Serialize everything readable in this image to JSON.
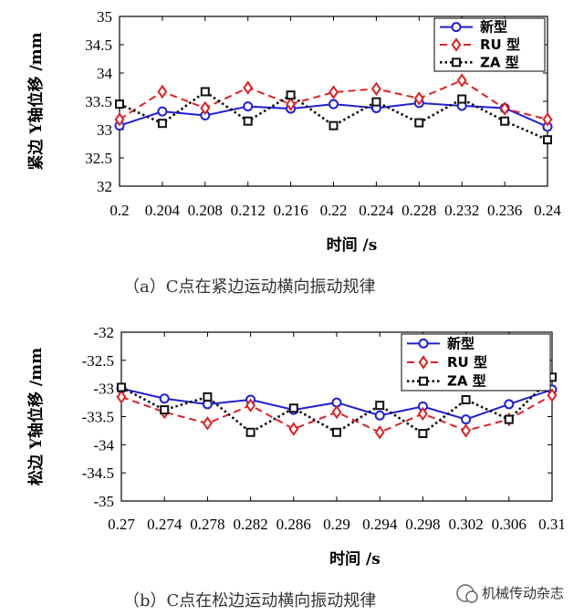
{
  "chart_data": [
    {
      "type": "line",
      "caption": "（a）C点在紧边运动横向振动规律",
      "xlabel": "时间 /s",
      "ylabel": "紧边 Y轴位移 /mm",
      "x": [
        0.2,
        0.204,
        0.208,
        0.212,
        0.216,
        0.22,
        0.224,
        0.228,
        0.232,
        0.236,
        0.24
      ],
      "x_tick_labels": [
        "0.2",
        "0.204",
        "0.208",
        "0.212",
        "0.216",
        "0.22",
        "0.224",
        "0.228",
        "0.232",
        "0.236",
        "0.24"
      ],
      "ylim": [
        32,
        35
      ],
      "y_ticks": [
        32,
        32.5,
        33,
        33.5,
        34,
        34.5,
        35
      ],
      "y_tick_labels": [
        "32",
        "32.5",
        "33",
        "33.5",
        "34",
        "34.5",
        "35"
      ],
      "grid": false,
      "legend_position": "top-right",
      "series": [
        {
          "name": "新型",
          "color": "#1f1fd6",
          "style": "solid",
          "marker": "circle",
          "values": [
            33.07,
            33.32,
            33.25,
            33.41,
            33.37,
            33.45,
            33.38,
            33.47,
            33.42,
            33.38,
            33.05
          ]
        },
        {
          "name": "RU 型",
          "color": "#e02020",
          "style": "dashed",
          "marker": "diamond",
          "values": [
            33.18,
            33.67,
            33.38,
            33.74,
            33.45,
            33.66,
            33.72,
            33.55,
            33.87,
            33.37,
            33.18
          ]
        },
        {
          "name": "ZA 型",
          "color": "#111111",
          "style": "dotted",
          "marker": "square",
          "values": [
            33.45,
            33.11,
            33.67,
            33.15,
            33.61,
            33.07,
            33.49,
            33.12,
            33.54,
            33.15,
            32.82
          ]
        }
      ]
    },
    {
      "type": "line",
      "caption": "（b）C点在松边运动横向振动规律",
      "xlabel": "时间 /s",
      "ylabel": "松边 Y轴位移 /mm",
      "x": [
        0.27,
        0.274,
        0.278,
        0.282,
        0.286,
        0.29,
        0.294,
        0.298,
        0.302,
        0.306,
        0.31
      ],
      "x_tick_labels": [
        "0.27",
        "0.274",
        "0.278",
        "0.282",
        "0.286",
        "0.29",
        "0.294",
        "0.298",
        "0.302",
        "0.306",
        "0.31"
      ],
      "ylim": [
        -35,
        -32
      ],
      "y_ticks": [
        -35,
        -34.5,
        -34,
        -33.5,
        -33,
        -32.5,
        -32
      ],
      "y_tick_labels": [
        "-35",
        "-34.5",
        "-34",
        "-33.5",
        "-33",
        "-32.5",
        "-32"
      ],
      "grid": false,
      "legend_position": "top-right",
      "series": [
        {
          "name": "新型",
          "color": "#1f1fd6",
          "style": "solid",
          "marker": "circle",
          "values": [
            -33.0,
            -33.18,
            -33.28,
            -33.2,
            -33.38,
            -33.25,
            -33.48,
            -33.32,
            -33.55,
            -33.28,
            -33.02
          ]
        },
        {
          "name": "RU 型",
          "color": "#e02020",
          "style": "dashed",
          "marker": "diamond",
          "values": [
            -33.15,
            -33.42,
            -33.62,
            -33.3,
            -33.72,
            -33.42,
            -33.78,
            -33.45,
            -33.75,
            -33.55,
            -33.12
          ]
        },
        {
          "name": "ZA 型",
          "color": "#111111",
          "style": "dotted",
          "marker": "square",
          "values": [
            -32.98,
            -33.38,
            -33.15,
            -33.78,
            -33.35,
            -33.78,
            -33.3,
            -33.8,
            -33.2,
            -33.55,
            -32.8
          ]
        }
      ]
    }
  ],
  "watermark": "机械传动杂志"
}
